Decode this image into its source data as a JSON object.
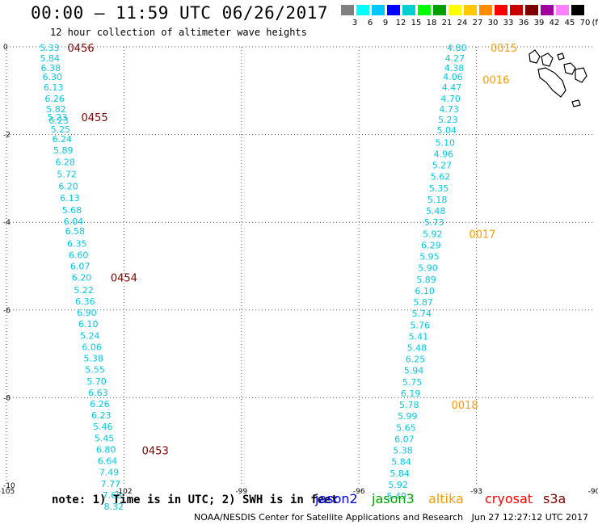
{
  "header": {
    "title": "00:00 – 11:59 UTC 06/26/2017",
    "subtitle": "12 hour collection of altimeter wave heights"
  },
  "colorbar": {
    "unit": "(ft)",
    "labels": [
      "3",
      "6",
      "9",
      "12",
      "15",
      "18",
      "21",
      "24",
      "27",
      "30",
      "33",
      "36",
      "39",
      "42",
      "45",
      "70"
    ],
    "colors": [
      "#808080",
      "#00ffff",
      "#00c8ff",
      "#0000ff",
      "#00ced1",
      "#00ff00",
      "#00a000",
      "#ffff00",
      "#ffc800",
      "#ff8c00",
      "#ff0000",
      "#c80000",
      "#800000",
      "#a000a0",
      "#ff80ff",
      "#000000"
    ]
  },
  "axes": {
    "x_ticks": [
      "-105",
      "-102",
      "-99",
      "-96",
      "-93",
      "-90"
    ],
    "y_ticks": [
      "0",
      "-2",
      "-4",
      "-6",
      "-8",
      "-10"
    ]
  },
  "tracks": [
    {
      "name": "west-track",
      "points": [
        [
          "-103.9",
          "-0.02",
          "5.33"
        ],
        [
          "-103.89",
          "-0.26",
          "5.84"
        ],
        [
          "-103.87",
          "-0.48",
          "6.38"
        ],
        [
          "-103.83",
          "-0.68",
          "6.30"
        ],
        [
          "-103.8",
          "-0.92",
          "6.13"
        ],
        [
          "-103.77",
          "-1.18",
          "6.26"
        ],
        [
          "-103.73",
          "-1.42",
          "5.82"
        ],
        [
          "-103.7",
          "-1.6",
          "5.23"
        ],
        [
          "-103.67",
          "-1.68",
          "6.23"
        ],
        [
          "-103.62",
          "-1.88",
          "5.25"
        ],
        [
          "-103.58",
          "-2.1",
          "6.24"
        ],
        [
          "-103.55",
          "-2.36",
          "5.89"
        ],
        [
          "-103.5",
          "-2.62",
          "6.28"
        ],
        [
          "-103.46",
          "-2.9",
          "5.72"
        ],
        [
          "-103.42",
          "-3.18",
          "6.20"
        ],
        [
          "-103.38",
          "-3.44",
          "6.13"
        ],
        [
          "-103.33",
          "-3.72",
          "5.68"
        ],
        [
          "-103.29",
          "-3.98",
          "6.04"
        ],
        [
          "-103.25",
          "-4.2",
          "6.58"
        ],
        [
          "-103.2",
          "-4.48",
          "6.35"
        ],
        [
          "-103.16",
          "-4.74",
          "6.60"
        ],
        [
          "-103.12",
          "-5.0",
          "6.07"
        ],
        [
          "-103.08",
          "-5.26",
          "6.20"
        ],
        [
          "-103.03",
          "-5.54",
          "5.22"
        ],
        [
          "-102.99",
          "-5.8",
          "6.36"
        ],
        [
          "-102.95",
          "-6.06",
          "6.90"
        ],
        [
          "-102.91",
          "-6.32",
          "6.10"
        ],
        [
          "-102.87",
          "-6.58",
          "5.24"
        ],
        [
          "-102.82",
          "-6.84",
          "6.06"
        ],
        [
          "-102.78",
          "-7.1",
          "5.38"
        ],
        [
          "-102.74",
          "-7.36",
          "5.55"
        ],
        [
          "-102.7",
          "-7.62",
          "5.70"
        ],
        [
          "-102.66",
          "-7.88",
          "6.63"
        ],
        [
          "-102.62",
          "-8.14",
          "6.26"
        ],
        [
          "-102.58",
          "-8.4",
          "6.23"
        ],
        [
          "-102.54",
          "-8.66",
          "5.46"
        ],
        [
          "-102.5",
          "-8.92",
          "5.45"
        ],
        [
          "-102.46",
          "-9.18",
          "6.80"
        ],
        [
          "-102.42",
          "-9.44",
          "6.64"
        ],
        [
          "-102.38",
          "-9.7",
          "7.49"
        ],
        [
          "-102.34",
          "-9.96",
          "7.77"
        ],
        [
          "-102.3",
          "-10.22",
          "7.68"
        ],
        [
          "-102.26",
          "-10.48",
          "8.32"
        ]
      ],
      "time_labels": [
        {
          "text": "0456",
          "lon": "-103.1",
          "lat": "-0.02",
          "color": "#800000"
        },
        {
          "text": "0455",
          "lon": "-102.75",
          "lat": "-1.6",
          "color": "#800000"
        },
        {
          "text": "0454",
          "lon": "-102.0",
          "lat": "-5.26",
          "color": "#800000"
        },
        {
          "text": "0453",
          "lon": "-101.2",
          "lat": "-9.2",
          "color": "#800000"
        }
      ]
    },
    {
      "name": "east-track",
      "points": [
        [
          "-93.5",
          "-0.02",
          "4.80"
        ],
        [
          "-93.55",
          "-0.26",
          "4.27"
        ],
        [
          "-93.57",
          "-0.48",
          "4.38"
        ],
        [
          "-93.6",
          "-0.68",
          "4.06"
        ],
        [
          "-93.63",
          "-0.92",
          "4.47"
        ],
        [
          "-93.66",
          "-1.18",
          "4.70"
        ],
        [
          "-93.7",
          "-1.42",
          "4.73"
        ],
        [
          "-93.73",
          "-1.66",
          "5.23"
        ],
        [
          "-93.76",
          "-1.9",
          "5.04"
        ],
        [
          "-93.8",
          "-2.18",
          "5.10"
        ],
        [
          "-93.84",
          "-2.44",
          "4.96"
        ],
        [
          "-93.88",
          "-2.7",
          "5.27"
        ],
        [
          "-93.92",
          "-2.96",
          "5.62"
        ],
        [
          "-93.96",
          "-3.22",
          "5.35"
        ],
        [
          "-94.0",
          "-3.48",
          "5.18"
        ],
        [
          "-94.04",
          "-3.74",
          "5.48"
        ],
        [
          "-94.08",
          "-4.0",
          "5.73"
        ],
        [
          "-94.12",
          "-4.26",
          "5.92"
        ],
        [
          "-94.16",
          "-4.52",
          "6.29"
        ],
        [
          "-94.2",
          "-4.78",
          "5.95"
        ],
        [
          "-94.24",
          "-5.04",
          "5.90"
        ],
        [
          "-94.28",
          "-5.3",
          "5.89"
        ],
        [
          "-94.32",
          "-5.56",
          "6.10"
        ],
        [
          "-94.36",
          "-5.82",
          "5.87"
        ],
        [
          "-94.4",
          "-6.08",
          "5.74"
        ],
        [
          "-94.44",
          "-6.34",
          "5.76"
        ],
        [
          "-94.48",
          "-6.6",
          "5.41"
        ],
        [
          "-94.52",
          "-6.86",
          "5.48"
        ],
        [
          "-94.56",
          "-7.12",
          "6.25"
        ],
        [
          "-94.6",
          "-7.38",
          "5.94"
        ],
        [
          "-94.64",
          "-7.64",
          "5.75"
        ],
        [
          "-94.68",
          "-7.9",
          "6.19"
        ],
        [
          "-94.72",
          "-8.16",
          "5.78"
        ],
        [
          "-94.76",
          "-8.42",
          "5.99"
        ],
        [
          "-94.8",
          "-8.68",
          "5.65"
        ],
        [
          "-94.84",
          "-8.94",
          "6.07"
        ],
        [
          "-94.88",
          "-9.2",
          "5.38"
        ],
        [
          "-94.92",
          "-9.46",
          "5.84"
        ],
        [
          "-94.96",
          "-9.72",
          "5.84"
        ],
        [
          "-95.0",
          "-9.98",
          "5.92"
        ],
        [
          "-95.04",
          "-10.24",
          "5.49"
        ]
      ],
      "time_labels": [
        {
          "text": "0015",
          "lon": "-92.3",
          "lat": "-0.02",
          "color": "#ff9900"
        },
        {
          "text": "0016",
          "lon": "-92.5",
          "lat": "-0.75",
          "color": "#ff9900"
        },
        {
          "text": "0017",
          "lon": "-92.85",
          "lat": "-4.26",
          "color": "#ff9900"
        },
        {
          "text": "0018",
          "lon": "-93.3",
          "lat": "-8.16",
          "color": "#ff9900"
        }
      ]
    }
  ],
  "footer": {
    "note": "note: 1) Time is in UTC; 2) SWH is in feet",
    "satellites": [
      {
        "name": "jason2",
        "color": "#0000ff"
      },
      {
        "name": "jason3",
        "color": "#00a000"
      },
      {
        "name": "altika",
        "color": "#ff9900"
      },
      {
        "name": "cryosat",
        "color": "#ff0000"
      },
      {
        "name": "s3a",
        "color": "#800000"
      }
    ],
    "credit": "NOAA/NESDIS Center for Satellite Applications and Research   Jun 27 12:27:12 UTC 2017"
  }
}
